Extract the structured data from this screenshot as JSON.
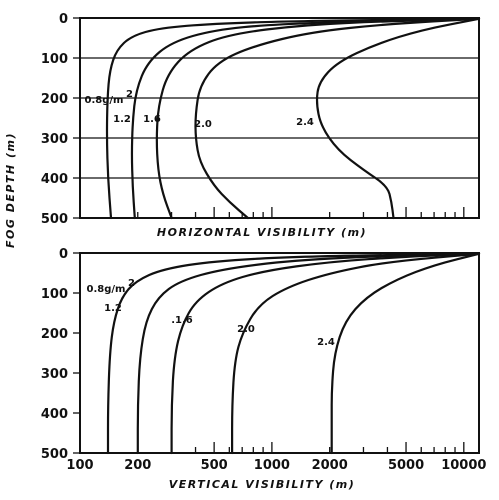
{
  "y_axis_title": "FOG DEPTH (m)",
  "chart_data": [
    {
      "type": "line",
      "xlabel": "HORIZONTAL VISIBILITY (m)",
      "ylabel": "FOG DEPTH (m)",
      "xscale": "log",
      "xlim": [
        100,
        12000
      ],
      "ylim": [
        500,
        0
      ],
      "y_ticks": [
        0,
        100,
        200,
        300,
        400,
        500
      ],
      "y_tick_labels": [
        "0",
        "100",
        "200",
        "300",
        "400",
        "500"
      ],
      "x_tick_labels": [],
      "grid": "horizontal",
      "series": [
        {
          "name": "0.8g/m²",
          "points": [
            [
              145,
              500
            ],
            [
              140,
              400
            ],
            [
              138,
              300
            ],
            [
              139,
              200
            ],
            [
              143,
              130
            ],
            [
              155,
              80
            ],
            [
              185,
              45
            ],
            [
              260,
              25
            ],
            [
              500,
              14
            ],
            [
              1500,
              7
            ],
            [
              12000,
              2
            ]
          ]
        },
        {
          "name": "1.2",
          "points": [
            [
              193,
              500
            ],
            [
              188,
              420
            ],
            [
              186,
              340
            ],
            [
              188,
              260
            ],
            [
              196,
              180
            ],
            [
              225,
              110
            ],
            [
              300,
              60
            ],
            [
              500,
              30
            ],
            [
              1000,
              16
            ],
            [
              3000,
              8
            ],
            [
              12000,
              2
            ]
          ]
        },
        {
          "name": "1.6",
          "points": [
            [
              300,
              500
            ],
            [
              270,
              440
            ],
            [
              255,
              380
            ],
            [
              250,
              300
            ],
            [
              256,
              220
            ],
            [
              285,
              140
            ],
            [
              370,
              80
            ],
            [
              600,
              40
            ],
            [
              1500,
              17
            ],
            [
              4000,
              8
            ],
            [
              12000,
              2
            ]
          ]
        },
        {
          "name": "2.0",
          "points": [
            [
              750,
              500
            ],
            [
              600,
              460
            ],
            [
              500,
              420
            ],
            [
              420,
              360
            ],
            [
              400,
              300
            ],
            [
              400,
              240
            ],
            [
              420,
              170
            ],
            [
              520,
              110
            ],
            [
              800,
              70
            ],
            [
              1600,
              35
            ],
            [
              4000,
              15
            ],
            [
              12000,
              2
            ]
          ]
        },
        {
          "name": "2.4",
          "points": [
            [
              4300,
              500
            ],
            [
              4200,
              460
            ],
            [
              4000,
              420
            ],
            [
              3000,
              380
            ],
            [
              2200,
              330
            ],
            [
              1800,
              270
            ],
            [
              1700,
              210
            ],
            [
              1760,
              160
            ],
            [
              2200,
              110
            ],
            [
              3500,
              65
            ],
            [
              6000,
              30
            ],
            [
              12000,
              2
            ]
          ]
        }
      ]
    },
    {
      "type": "line",
      "xlabel": "VERTICAL VISIBILITY (m)",
      "ylabel": "FOG DEPTH (m)",
      "xscale": "log",
      "xlim": [
        100,
        12000
      ],
      "ylim": [
        500,
        0
      ],
      "y_ticks": [
        0,
        100,
        200,
        300,
        400,
        500
      ],
      "y_tick_labels": [
        "0",
        "100",
        "200",
        "300",
        "400",
        "500"
      ],
      "x_ticks": [
        100,
        200,
        500,
        1000,
        2000,
        5000,
        10000
      ],
      "x_tick_labels": [
        "100",
        "200",
        "500",
        "1000",
        "2000",
        "5000",
        "10000"
      ],
      "grid": "none",
      "series": [
        {
          "name": "0.8g/m²",
          "points": [
            [
              140,
              500
            ],
            [
              140,
              380
            ],
            [
              143,
              250
            ],
            [
              150,
              170
            ],
            [
              165,
              110
            ],
            [
              195,
              70
            ],
            [
              270,
              40
            ],
            [
              500,
              20
            ],
            [
              1500,
              8
            ],
            [
              12000,
              2
            ]
          ]
        },
        {
          "name": "1.2",
          "points": [
            [
              200,
              500
            ],
            [
              200,
              380
            ],
            [
              205,
              260
            ],
            [
              220,
              170
            ],
            [
              255,
              110
            ],
            [
              330,
              70
            ],
            [
              550,
              40
            ],
            [
              1300,
              18
            ],
            [
              4000,
              7
            ],
            [
              12000,
              2
            ]
          ]
        },
        {
          "name": "1.6",
          "points": [
            [
              300,
              500
            ],
            [
              300,
              380
            ],
            [
              310,
              260
            ],
            [
              340,
              180
            ],
            [
              400,
              120
            ],
            [
              550,
              75
            ],
            [
              900,
              45
            ],
            [
              2000,
              22
            ],
            [
              5000,
              9
            ],
            [
              12000,
              2
            ]
          ]
        },
        {
          "name": "2.0",
          "points": [
            [
              620,
              500
            ],
            [
              620,
              380
            ],
            [
              640,
              270
            ],
            [
              700,
              200
            ],
            [
              850,
              130
            ],
            [
              1200,
              85
            ],
            [
              2000,
              50
            ],
            [
              4000,
              22
            ],
            [
              12000,
              2
            ]
          ]
        },
        {
          "name": "2.4",
          "points": [
            [
              2050,
              500
            ],
            [
              2050,
              420
            ],
            [
              2050,
              340
            ],
            [
              2120,
              250
            ],
            [
              2400,
              170
            ],
            [
              3100,
              110
            ],
            [
              4500,
              65
            ],
            [
              7000,
              30
            ],
            [
              12000,
              2
            ]
          ]
        }
      ]
    }
  ],
  "curve_labels": {
    "top": [
      "0.8g/m",
      "1.2",
      "1.6",
      "2.0",
      "2.4"
    ],
    "bottom": [
      "0.8g/m",
      "1.2",
      ".1.6",
      "2.0",
      "2.4"
    ],
    "superscript": "2"
  }
}
